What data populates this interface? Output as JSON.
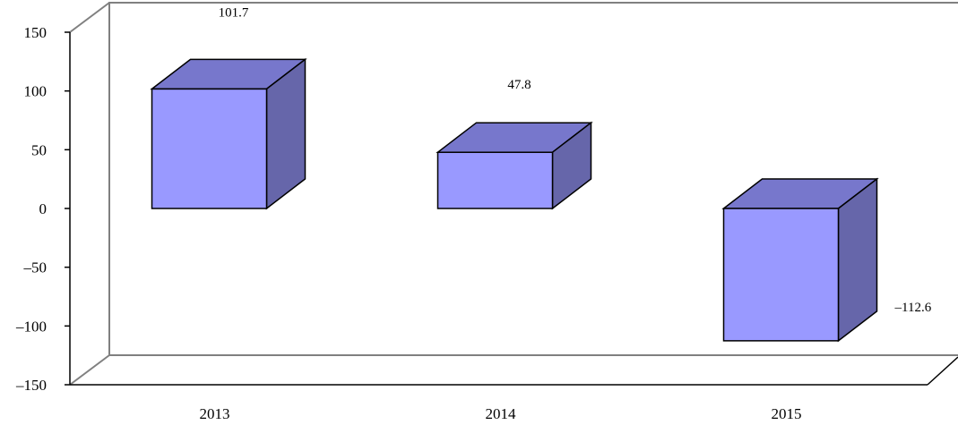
{
  "chart_data": {
    "type": "bar",
    "categories": [
      "2013",
      "2014",
      "2015"
    ],
    "values": [
      101.7,
      47.8,
      -112.6
    ],
    "data_labels": [
      "101.7",
      "47.8",
      "–112.6"
    ],
    "yticks": [
      150,
      100,
      50,
      0,
      -50,
      -100,
      -150
    ],
    "ytick_labels": [
      "150",
      "100",
      "50",
      "0",
      "–50",
      "–100",
      "–150"
    ],
    "ylim": [
      -150,
      150
    ],
    "title": "",
    "xlabel": "",
    "ylabel": "",
    "grid": false,
    "legend": "none",
    "style": "3d-box",
    "colors": {
      "bar_front": "#9999ff",
      "bar_top": "#7777cc",
      "bar_side": "#6666aa",
      "wall": "#808080"
    }
  }
}
